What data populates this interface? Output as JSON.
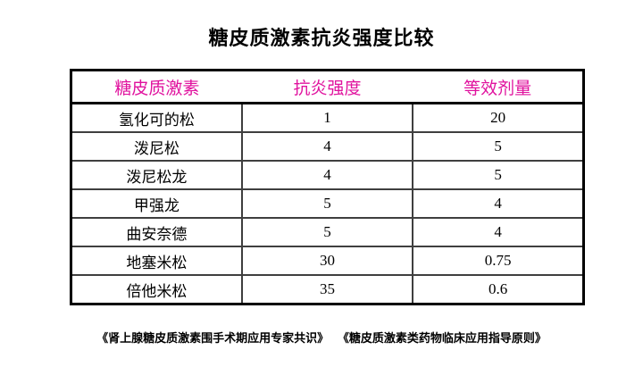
{
  "title": "糖皮质激素抗炎强度比较",
  "chart_data": {
    "type": "table",
    "title": "糖皮质激素抗炎强度比较",
    "columns": [
      "糖皮质激素",
      "抗炎强度",
      "等效剂量"
    ],
    "rows": [
      [
        "氢化可的松",
        "1",
        "20"
      ],
      [
        "泼尼松",
        "4",
        "5"
      ],
      [
        "泼尼松龙",
        "4",
        "5"
      ],
      [
        "甲强龙",
        "5",
        "4"
      ],
      [
        "曲安奈德",
        "5",
        "4"
      ],
      [
        "地塞米松",
        "30",
        "0.75"
      ],
      [
        "倍他米松",
        "35",
        "0.6"
      ]
    ],
    "layout": {
      "header_row": true,
      "grid": true,
      "header_vertical_dividers": false
    }
  },
  "footer": {
    "references": [
      "《肾上腺糖皮质激素围手术期应用专家共识》",
      "《糖皮质激素类药物临床应用指导原则》"
    ]
  },
  "colors": {
    "header_text": "#e0129e",
    "body_text": "#000000",
    "title_text": "#000000",
    "outer_border": "#000000",
    "inner_border": "#3f3f3f",
    "background": "#ffffff"
  }
}
